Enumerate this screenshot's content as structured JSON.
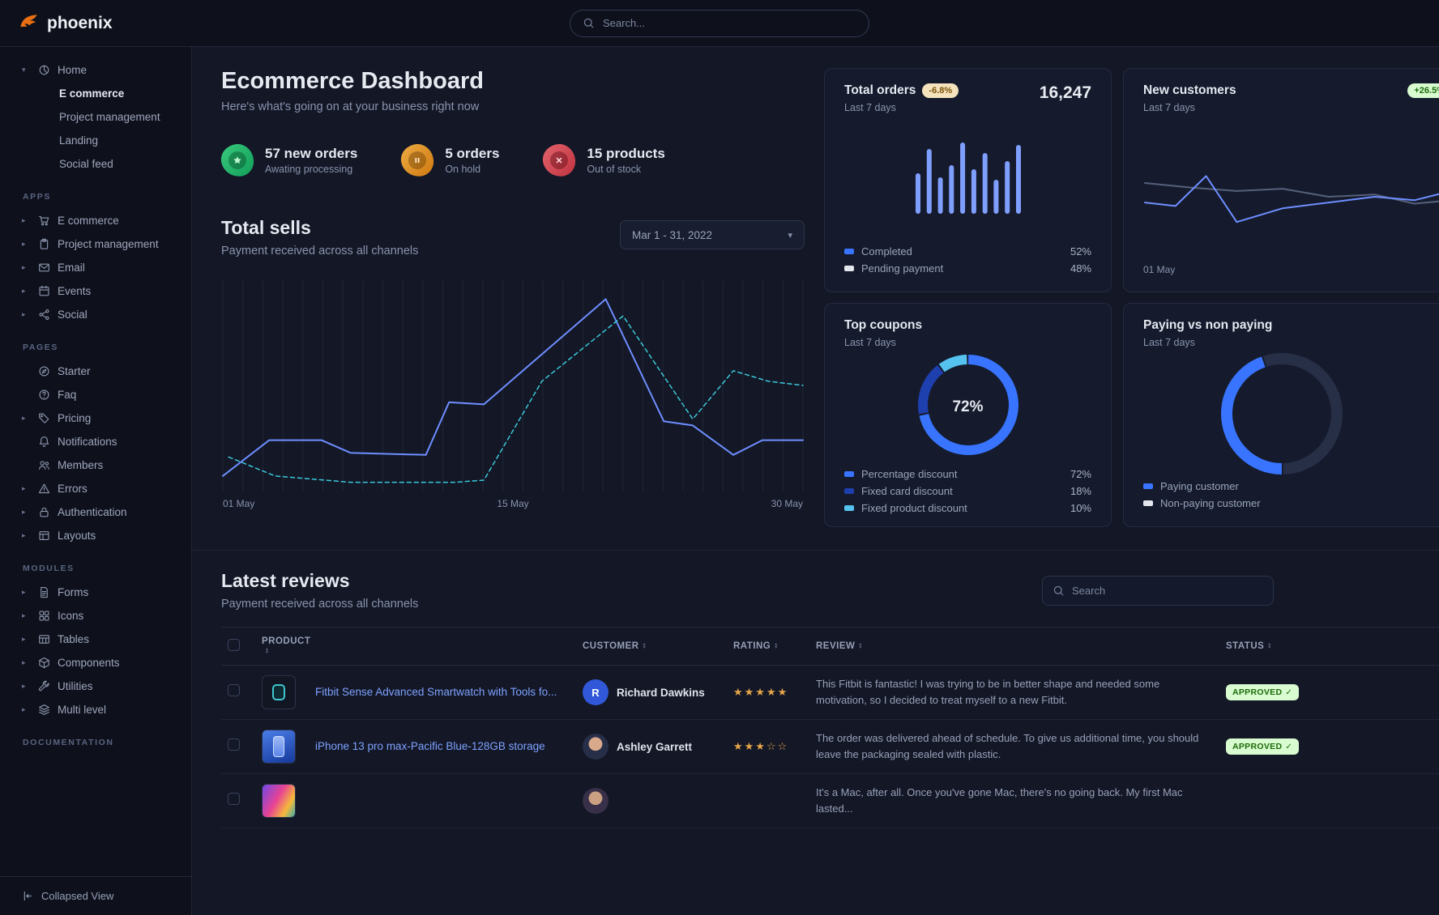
{
  "theme": {
    "primary": "#3874ff",
    "logo_orange": "#e96f12",
    "star_gold": "#e5a54b",
    "approved_badge_bg": "#d9fbd0",
    "approved_badge_text": "#1c6c09"
  },
  "navbar": {
    "brand": "phoenix",
    "search_placeholder": "Search..."
  },
  "sidebar": {
    "home": {
      "label": "Home",
      "icon": "pie",
      "children": [
        {
          "label": "E commerce",
          "active": true
        },
        {
          "label": "Project management",
          "active": false
        },
        {
          "label": "Landing",
          "active": false
        },
        {
          "label": "Social feed",
          "active": false
        }
      ]
    },
    "sections": [
      {
        "title": "APPS",
        "items": [
          {
            "label": "E commerce",
            "icon": "cart",
            "expandable": true
          },
          {
            "label": "Project management",
            "icon": "clipboard",
            "expandable": true
          },
          {
            "label": "Email",
            "icon": "mail",
            "expandable": true
          },
          {
            "label": "Events",
            "icon": "calendar",
            "expandable": true
          },
          {
            "label": "Social",
            "icon": "share",
            "expandable": true
          }
        ]
      },
      {
        "title": "PAGES",
        "items": [
          {
            "label": "Starter",
            "icon": "compass",
            "expandable": false
          },
          {
            "label": "Faq",
            "icon": "question",
            "expandable": false
          },
          {
            "label": "Pricing",
            "icon": "tag",
            "expandable": true
          },
          {
            "label": "Notifications",
            "icon": "bell",
            "expandable": false
          },
          {
            "label": "Members",
            "icon": "users",
            "expandable": false
          },
          {
            "label": "Errors",
            "icon": "warning",
            "expandable": true
          },
          {
            "label": "Authentication",
            "icon": "lock",
            "expandable": true
          },
          {
            "label": "Layouts",
            "icon": "layout",
            "expandable": true
          }
        ]
      },
      {
        "title": "MODULES",
        "items": [
          {
            "label": "Forms",
            "icon": "file",
            "expandable": true
          },
          {
            "label": "Icons",
            "icon": "grid",
            "expandable": true
          },
          {
            "label": "Tables",
            "icon": "table",
            "expandable": true
          },
          {
            "label": "Components",
            "icon": "box",
            "expandable": true
          },
          {
            "label": "Utilities",
            "icon": "wrench",
            "expandable": true
          },
          {
            "label": "Multi level",
            "icon": "layers",
            "expandable": true
          }
        ]
      },
      {
        "title": "DOCUMENTATION",
        "items": []
      }
    ],
    "footer": {
      "label": "Collapsed View",
      "icon": "collapse"
    }
  },
  "page": {
    "title": "Ecommerce Dashboard",
    "subtitle": "Here's what's going on at your business right now"
  },
  "stats": [
    {
      "value": "57 new orders",
      "caption": "Awating processing",
      "icon": "star-solid",
      "tone": "green"
    },
    {
      "value": "5 orders",
      "caption": "On hold",
      "icon": "pause-solid",
      "tone": "yellow"
    },
    {
      "value": "15 products",
      "caption": "Out of stock",
      "icon": "x-mark",
      "tone": "red"
    }
  ],
  "total_sells": {
    "title": "Total sells",
    "subtitle": "Payment received across all channels",
    "date_range": "Mar 1 - 31, 2022"
  },
  "cards": {
    "total_orders": {
      "title": "Total orders",
      "badge": "-6.8%",
      "value": "16,247",
      "period": "Last 7 days"
    },
    "new_customers": {
      "title": "New customers",
      "badge": "+26.5%",
      "period": "Last 7 days",
      "tick": "01 May"
    },
    "top_coupons": {
      "title": "Top coupons",
      "period": "Last 7 days"
    },
    "paying": {
      "title": "Paying vs non paying",
      "period": "Last 7 days"
    }
  },
  "reviews": {
    "title": "Latest reviews",
    "subtitle": "Payment received across all channels",
    "search_placeholder": "Search",
    "columns": [
      "PRODUCT",
      "CUSTOMER",
      "RATING",
      "REVIEW",
      "STATUS"
    ],
    "rows": [
      {
        "product": "Fitbit Sense Advanced Smartwatch with Tools fo...",
        "customer": "Richard Dawkins",
        "avatar_initial": "R",
        "rating": 5,
        "review": "This Fitbit is fantastic! I was trying to be in better shape and needed some motivation, so I decided to treat myself to a new Fitbit.",
        "status": "APPROVED"
      },
      {
        "product": "iPhone 13 pro max-Pacific Blue-128GB storage",
        "customer": "Ashley Garrett",
        "avatar_initial": "",
        "rating": 3,
        "review": "The order was delivered ahead of schedule. To give us additional time, you should leave the packaging sealed with plastic.",
        "status": "APPROVED"
      },
      {
        "product": "",
        "customer": "",
        "avatar_initial": "",
        "rating": 0,
        "review": "It's a Mac, after all. Once you've gone Mac, there's no going back. My first Mac lasted...",
        "status": ""
      }
    ]
  },
  "chart_data": [
    {
      "id": "total-sells",
      "type": "line",
      "title": "Total sells",
      "subtitle": "Payment received across all channels",
      "x_ticks": [
        "01 May",
        "15 May",
        "30 May"
      ],
      "grid": "vertical",
      "ylim": [
        0,
        100
      ],
      "series": [
        {
          "name": "current",
          "style": "solid",
          "color": "#6e8eff",
          "width": 2,
          "points": [
            [
              0,
              7
            ],
            [
              8,
              24
            ],
            [
              17,
              24
            ],
            [
              22,
              18
            ],
            [
              35,
              17
            ],
            [
              39,
              42
            ],
            [
              45,
              41
            ],
            [
              66,
              91
            ],
            [
              76,
              33
            ],
            [
              81,
              31
            ],
            [
              88,
              17
            ],
            [
              93,
              24
            ],
            [
              100,
              24
            ]
          ]
        },
        {
          "name": "previous",
          "style": "dashed",
          "color": "#3cc8d8",
          "width": 1.5,
          "points": [
            [
              1,
              16
            ],
            [
              9,
              7
            ],
            [
              22,
              4
            ],
            [
              40,
              4
            ],
            [
              45,
              5
            ],
            [
              55,
              52
            ],
            [
              69,
              83
            ],
            [
              81,
              34
            ],
            [
              88,
              57
            ],
            [
              94,
              52
            ],
            [
              100,
              50
            ]
          ]
        }
      ]
    },
    {
      "id": "total-orders",
      "type": "bar",
      "title": "Total orders",
      "color": "#7f9fff",
      "values": [
        50,
        80,
        45,
        60,
        88,
        55,
        75,
        42,
        65,
        85
      ],
      "legend": [
        {
          "label": "Completed",
          "value_pct": 52,
          "value_label": "52%",
          "color": "#3874ff"
        },
        {
          "label": "Pending payment",
          "value_pct": 48,
          "value_label": "48%",
          "color": "#e3e6ed"
        }
      ]
    },
    {
      "id": "new-customers",
      "type": "line",
      "title": "New customers",
      "x_ticks": [
        "01 May"
      ],
      "grid": "none",
      "series": [
        {
          "name": "previous",
          "style": "solid",
          "color": "#55607a",
          "width": 2,
          "points": [
            [
              0,
              62
            ],
            [
              15,
              58
            ],
            [
              30,
              55
            ],
            [
              45,
              57
            ],
            [
              60,
              50
            ],
            [
              75,
              52
            ],
            [
              88,
              44
            ],
            [
              100,
              47
            ]
          ]
        },
        {
          "name": "current",
          "style": "solid",
          "color": "#6e8eff",
          "width": 2,
          "points": [
            [
              0,
              45
            ],
            [
              10,
              42
            ],
            [
              20,
              68
            ],
            [
              30,
              28
            ],
            [
              45,
              40
            ],
            [
              60,
              45
            ],
            [
              75,
              50
            ],
            [
              88,
              47
            ],
            [
              100,
              55
            ]
          ]
        }
      ]
    },
    {
      "id": "top-coupons",
      "type": "donut",
      "title": "Top coupons",
      "center_label": "72%",
      "segments": [
        {
          "label": "Percentage discount",
          "value": 72,
          "value_label": "72%",
          "color": "#3874ff"
        },
        {
          "label": "Fixed card discount",
          "value": 18,
          "value_label": "18%",
          "color": "#1e3fae"
        },
        {
          "label": "Fixed product discount",
          "value": 10,
          "value_label": "10%",
          "color": "#56c2f0"
        }
      ]
    },
    {
      "id": "paying",
      "type": "donut",
      "title": "Paying vs non paying",
      "rotate": 180,
      "segments": [
        {
          "label": "Paying customer",
          "value": 45,
          "color": "#3874ff",
          "ring": "#3874ff"
        },
        {
          "label": "Non-paying customer",
          "value": 55,
          "color": "#e3e6ed",
          "ring": "#272f47"
        }
      ]
    }
  ]
}
